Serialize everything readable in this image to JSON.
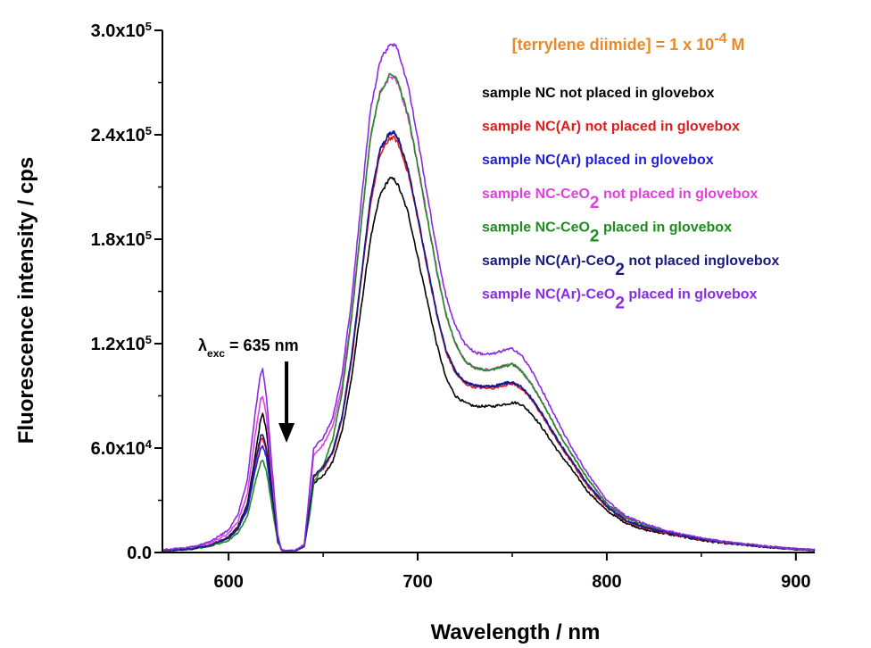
{
  "chart_data": {
    "type": "line",
    "xlabel": "Wavelength / nm",
    "ylabel": "Fluorescence intensity / cps",
    "xlim": [
      565,
      910
    ],
    "ylim": [
      0,
      300000
    ],
    "x_ticks": [
      {
        "value": 600,
        "label": "600"
      },
      {
        "value": 700,
        "label": "700"
      },
      {
        "value": 800,
        "label": "800"
      },
      {
        "value": 900,
        "label": "900"
      }
    ],
    "y_ticks": [
      {
        "value": 0,
        "mant": "0.0",
        "exp": ""
      },
      {
        "value": 60000,
        "mant": "6.0x10",
        "exp": "4"
      },
      {
        "value": 120000,
        "mant": "1.2x10",
        "exp": "5"
      },
      {
        "value": 180000,
        "mant": "1.8x10",
        "exp": "5"
      },
      {
        "value": 240000,
        "mant": "2.4x10",
        "exp": "5"
      },
      {
        "value": 300000,
        "mant": "3.0x10",
        "exp": "5"
      }
    ],
    "concentration": {
      "pre": "[terrylene diimide] = 1 x 10",
      "sup": "-4",
      "post": " M",
      "color": "#E8892A"
    },
    "annotation": {
      "sym": "λ",
      "sub": "exc",
      "rest": " = 635 nm",
      "x": 633
    },
    "legend_placement": "top-right",
    "series": [
      {
        "pre": "sample NC not placed in glovebox",
        "sub": "",
        "post": "",
        "color": "#000000",
        "x": [
          565,
          580,
          590,
          600,
          605,
          610,
          614,
          617,
          618,
          620,
          623,
          626,
          628,
          630,
          635,
          640,
          643,
          645,
          650,
          655,
          660,
          665,
          670,
          675,
          680,
          685,
          688,
          690,
          695,
          700,
          705,
          710,
          715,
          720,
          725,
          730,
          735,
          740,
          745,
          750,
          752,
          755,
          760,
          765,
          770,
          775,
          780,
          790,
          800,
          810,
          820,
          830,
          840,
          850,
          860,
          870,
          880,
          890,
          900,
          910
        ],
        "y": [
          1000,
          2000,
          4000,
          9000,
          15000,
          28000,
          55000,
          77000,
          80000,
          70000,
          38000,
          8000,
          1500,
          800,
          1000,
          3500,
          25000,
          40000,
          44000,
          52000,
          70000,
          100000,
          140000,
          180000,
          205000,
          215000,
          214000,
          210000,
          195000,
          170000,
          145000,
          120000,
          100000,
          90000,
          86000,
          84000,
          84000,
          84000,
          85000,
          86000,
          86000,
          85000,
          80000,
          73000,
          65000,
          57000,
          50000,
          35000,
          24000,
          17000,
          13000,
          11000,
          9000,
          7000,
          5500,
          4500,
          3500,
          2500,
          1800,
          1200
        ]
      },
      {
        "pre": "sample NC(Ar) not placed in glovebox",
        "sub": "",
        "post": "",
        "color": "#E01B1B",
        "x": [
          565,
          580,
          590,
          600,
          605,
          610,
          614,
          617,
          618,
          620,
          623,
          626,
          628,
          630,
          635,
          640,
          643,
          645,
          650,
          655,
          660,
          665,
          670,
          675,
          680,
          685,
          688,
          690,
          695,
          700,
          705,
          710,
          715,
          720,
          725,
          730,
          735,
          740,
          745,
          750,
          752,
          755,
          760,
          765,
          770,
          775,
          780,
          790,
          800,
          810,
          820,
          830,
          840,
          850,
          860,
          870,
          880,
          890,
          900,
          910
        ],
        "y": [
          1000,
          2000,
          4000,
          8500,
          14000,
          26000,
          50000,
          65000,
          66000,
          58000,
          32000,
          7000,
          1500,
          800,
          1000,
          3500,
          27000,
          43000,
          48000,
          57000,
          77000,
          110000,
          155000,
          200000,
          228000,
          238000,
          238000,
          234000,
          218000,
          192000,
          164000,
          137000,
          115000,
          103000,
          97000,
          95000,
          94500,
          94500,
          96000,
          97000,
          96000,
          94000,
          88000,
          80000,
          71000,
          62000,
          54000,
          38000,
          26000,
          18000,
          14000,
          11500,
          9500,
          7500,
          6000,
          4800,
          3700,
          2700,
          1900,
          1300
        ]
      },
      {
        "pre": "sample NC(Ar) placed in glovebox",
        "sub": "",
        "post": "",
        "color": "#1F1FD6",
        "x": [
          565,
          580,
          590,
          600,
          605,
          610,
          614,
          617,
          618,
          620,
          623,
          626,
          628,
          630,
          635,
          640,
          643,
          645,
          650,
          655,
          660,
          665,
          670,
          675,
          680,
          685,
          688,
          690,
          695,
          700,
          705,
          710,
          715,
          720,
          725,
          730,
          735,
          740,
          745,
          750,
          752,
          755,
          760,
          765,
          770,
          775,
          780,
          790,
          800,
          810,
          820,
          830,
          840,
          850,
          860,
          870,
          880,
          890,
          900,
          910
        ],
        "y": [
          1000,
          2000,
          4000,
          8000,
          13500,
          25000,
          47000,
          60000,
          61000,
          55000,
          30000,
          6500,
          1500,
          800,
          1000,
          3500,
          27000,
          44000,
          49000,
          58000,
          78000,
          112000,
          157000,
          203000,
          231000,
          241000,
          241000,
          237000,
          220000,
          193000,
          165000,
          138000,
          116000,
          104000,
          98000,
          96000,
          95500,
          95500,
          97000,
          98000,
          97000,
          95000,
          89000,
          81000,
          72000,
          63000,
          55000,
          39000,
          26500,
          18500,
          14500,
          12000,
          9800,
          7700,
          6100,
          4900,
          3800,
          2800,
          2000,
          1300
        ]
      },
      {
        "pre": "sample NC-CeO",
        "sub": "2",
        "post": " not placed in glovebox",
        "color": "#E040E0",
        "x": [
          565,
          580,
          590,
          600,
          605,
          610,
          614,
          617,
          618,
          620,
          623,
          626,
          628,
          630,
          635,
          640,
          643,
          645,
          650,
          655,
          660,
          665,
          670,
          675,
          680,
          685,
          688,
          690,
          695,
          700,
          705,
          710,
          715,
          720,
          725,
          730,
          735,
          740,
          745,
          750,
          752,
          755,
          760,
          765,
          770,
          775,
          780,
          790,
          800,
          810,
          820,
          830,
          840,
          850,
          860,
          870,
          880,
          890,
          900,
          910
        ],
        "y": [
          1200,
          2500,
          5000,
          11000,
          18000,
          34000,
          67000,
          88000,
          90000,
          78000,
          42000,
          9000,
          1600,
          800,
          1000,
          4000,
          35000,
          56000,
          62000,
          72000,
          96000,
          136000,
          188000,
          238000,
          264000,
          273000,
          273000,
          268000,
          250000,
          222000,
          192000,
          162000,
          136000,
          120000,
          110000,
          106000,
          105000,
          105000,
          107000,
          108000,
          107000,
          104000,
          97000,
          88000,
          78000,
          68000,
          59000,
          42000,
          28000,
          20000,
          15500,
          12500,
          10200,
          8000,
          6400,
          5100,
          3900,
          2900,
          2000,
          1400
        ]
      },
      {
        "pre": "sample NC-CeO",
        "sub": "2",
        "post": " placed in glovebox",
        "color": "#1E8C1E",
        "x": [
          565,
          580,
          590,
          600,
          605,
          610,
          614,
          617,
          618,
          620,
          623,
          626,
          628,
          630,
          635,
          640,
          643,
          645,
          650,
          655,
          660,
          665,
          670,
          675,
          680,
          685,
          688,
          690,
          695,
          700,
          705,
          710,
          715,
          720,
          725,
          730,
          735,
          740,
          745,
          750,
          752,
          755,
          760,
          765,
          770,
          775,
          780,
          790,
          800,
          810,
          820,
          830,
          840,
          850,
          860,
          870,
          880,
          890,
          900,
          910
        ],
        "y": [
          900,
          1800,
          3500,
          7000,
          11500,
          21000,
          40000,
          52000,
          53000,
          47000,
          26000,
          6000,
          1400,
          800,
          1000,
          3500,
          22000,
          40000,
          50000,
          65000,
          92000,
          134000,
          187000,
          238000,
          264000,
          274000,
          274000,
          269000,
          251000,
          223000,
          193000,
          163000,
          137000,
          120000,
          110000,
          106000,
          105000,
          105000,
          107000,
          108000,
          107000,
          104000,
          97000,
          88000,
          78000,
          68000,
          59000,
          42000,
          28000,
          20000,
          15500,
          12500,
          10200,
          8000,
          6400,
          5100,
          3900,
          2900,
          2000,
          1400
        ]
      },
      {
        "pre": "sample NC(Ar)-CeO",
        "sub": "2",
        "post": " not placed inglovebox",
        "color": "#1A1A80",
        "x": [
          565,
          580,
          590,
          600,
          605,
          610,
          614,
          617,
          618,
          620,
          623,
          626,
          628,
          630,
          635,
          640,
          643,
          645,
          650,
          655,
          660,
          665,
          670,
          675,
          680,
          685,
          688,
          690,
          695,
          700,
          705,
          710,
          715,
          720,
          725,
          730,
          735,
          740,
          745,
          750,
          752,
          755,
          760,
          765,
          770,
          775,
          780,
          790,
          800,
          810,
          820,
          830,
          840,
          850,
          860,
          870,
          880,
          890,
          900,
          910
        ],
        "y": [
          1000,
          2000,
          4000,
          8500,
          14000,
          27000,
          52000,
          67000,
          68000,
          60000,
          33000,
          7000,
          1500,
          800,
          1000,
          3500,
          27000,
          44000,
          49000,
          58000,
          78000,
          112000,
          157000,
          203000,
          231000,
          241000,
          241000,
          237000,
          220000,
          193000,
          165000,
          138000,
          116000,
          104000,
          98000,
          96000,
          95500,
          95500,
          97000,
          98000,
          97000,
          95000,
          89000,
          81000,
          72000,
          63000,
          55000,
          39000,
          26500,
          18500,
          14500,
          12000,
          9800,
          7700,
          6100,
          4900,
          3800,
          2800,
          2000,
          1300
        ]
      },
      {
        "pre": "sample NC(Ar)-CeO",
        "sub": "2",
        "post": " placed in glovebox",
        "color": "#8A2BE2",
        "x": [
          565,
          580,
          590,
          600,
          605,
          610,
          614,
          617,
          618,
          620,
          623,
          626,
          628,
          630,
          635,
          640,
          643,
          645,
          650,
          655,
          660,
          665,
          670,
          675,
          680,
          685,
          688,
          690,
          695,
          700,
          705,
          710,
          715,
          720,
          725,
          730,
          735,
          740,
          745,
          750,
          752,
          755,
          760,
          765,
          770,
          775,
          780,
          790,
          800,
          810,
          820,
          830,
          840,
          850,
          860,
          870,
          880,
          890,
          900,
          910
        ],
        "y": [
          1500,
          3000,
          6000,
          13000,
          22000,
          42000,
          80000,
          103000,
          105000,
          90000,
          48000,
          10000,
          1700,
          800,
          1000,
          4500,
          38000,
          60000,
          66000,
          77000,
          102000,
          145000,
          200000,
          254000,
          282000,
          292000,
          292000,
          287000,
          268000,
          238000,
          206000,
          174000,
          147000,
          130000,
          120000,
          115000,
          114000,
          114000,
          116000,
          117000,
          116000,
          113000,
          105000,
          95000,
          84000,
          73000,
          63000,
          45000,
          30000,
          21000,
          16500,
          13000,
          10500,
          8300,
          6600,
          5300,
          4100,
          3000,
          2100,
          1400
        ]
      }
    ]
  }
}
